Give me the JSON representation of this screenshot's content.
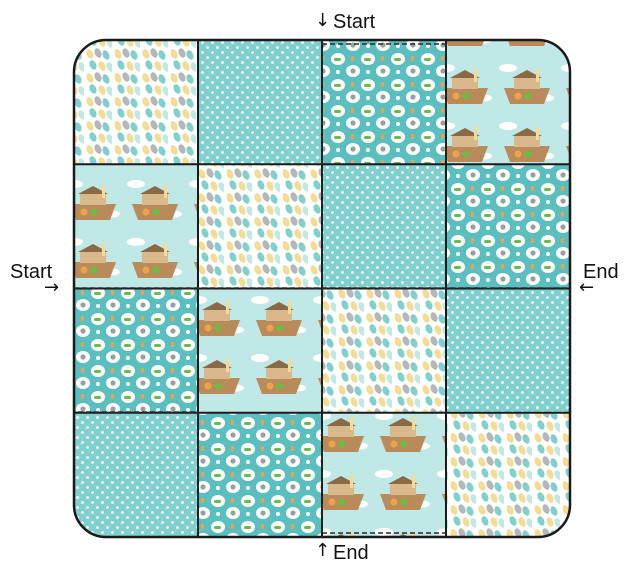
{
  "labels": {
    "top_start": "Start",
    "left_start": "Start",
    "right_end": "End",
    "bottom_end": "End"
  },
  "quilt": {
    "rows": 4,
    "cols": 4,
    "cells": [
      [
        "leaves",
        "dots",
        "animals",
        "ark"
      ],
      [
        "ark",
        "leaves",
        "dots",
        "animals"
      ],
      [
        "animals",
        "ark",
        "leaves",
        "dots"
      ],
      [
        "dots",
        "animals",
        "ark",
        "leaves"
      ]
    ]
  },
  "colors": {
    "aqua": "#7fd0cf",
    "aqua_light": "#bfe8e6",
    "teal": "#5bbfc0",
    "gray": "#b5b8b8",
    "yellow": "#f4dc94",
    "white": "#ffffff",
    "brown": "#b98b5a",
    "orange": "#f0a24a",
    "green": "#6cbb45",
    "outline": "#1a1a1a"
  }
}
